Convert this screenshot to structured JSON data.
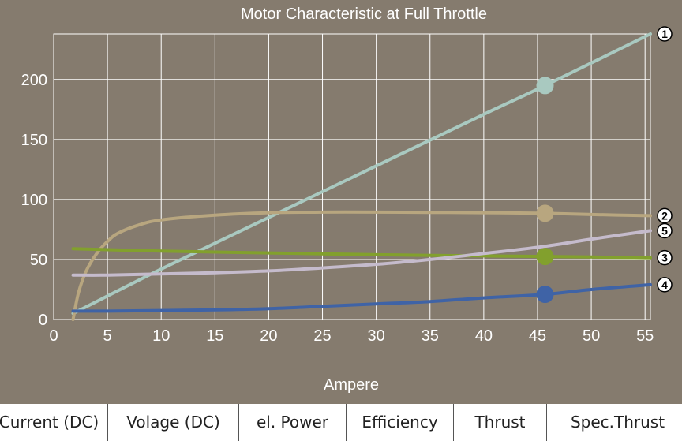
{
  "chart_data": {
    "type": "line",
    "title": "Motor Characteristic at Full Throttle",
    "xlabel": "Ampere",
    "ylabel": "",
    "xlim": [
      0,
      55.5
    ],
    "ylim": [
      0,
      238
    ],
    "xticks": [
      0,
      5,
      10,
      15,
      20,
      25,
      30,
      35,
      40,
      45,
      50,
      55
    ],
    "yticks": [
      0,
      50,
      100,
      150,
      200
    ],
    "grid": true,
    "legend": "none",
    "marker_x": 45.7,
    "series": [
      {
        "label": "1",
        "color": "#a9c9c0",
        "x": [
          1.8,
          10,
          20,
          30,
          40,
          45.7,
          55.5
        ],
        "y": [
          5,
          42,
          85,
          128,
          171,
          195,
          238
        ]
      },
      {
        "label": "2",
        "color": "#b8a67f",
        "x": [
          1.8,
          2.3,
          3,
          4,
          5,
          6,
          8,
          10,
          15,
          20,
          25,
          30,
          35,
          40,
          45.7,
          50,
          55.5
        ],
        "y": [
          0,
          22,
          40,
          55,
          65,
          72,
          79,
          83,
          87,
          89,
          89.5,
          89.5,
          89.3,
          89,
          88.5,
          87.5,
          86.5
        ]
      },
      {
        "label": "3",
        "color": "#82a02d",
        "x": [
          1.8,
          10,
          20,
          30,
          40,
          45.7,
          55.5
        ],
        "y": [
          59,
          57,
          55.5,
          54,
          53,
          52.5,
          51.5
        ]
      },
      {
        "label": "4",
        "color": "#3f63a6",
        "x": [
          1.8,
          5,
          10,
          15,
          20,
          25,
          30,
          35,
          40,
          45.7,
          50,
          55.5
        ],
        "y": [
          7,
          7,
          7.5,
          8,
          9,
          11,
          13,
          15,
          18,
          21,
          25,
          29
        ]
      },
      {
        "label": "5",
        "color": "#c5bbcc",
        "x": [
          1.8,
          5,
          10,
          15,
          20,
          25,
          30,
          35,
          40,
          45.7,
          50,
          55.5
        ],
        "y": [
          37,
          37,
          38,
          39,
          40.5,
          43,
          46,
          50,
          55,
          61,
          67,
          74
        ]
      }
    ],
    "markers": [
      {
        "series": "1",
        "x": 45.7,
        "y": 195
      },
      {
        "series": "2",
        "x": 45.7,
        "y": 88.5
      },
      {
        "series": "3",
        "x": 45.7,
        "y": 52.5
      },
      {
        "series": "4",
        "x": 45.7,
        "y": 21
      }
    ],
    "end_labels": [
      {
        "text": "1",
        "y": 238
      },
      {
        "text": "2",
        "y": 86.5
      },
      {
        "text": "5",
        "y": 74
      },
      {
        "text": "3",
        "y": 51.5
      },
      {
        "text": "4",
        "y": 29
      }
    ]
  },
  "table": {
    "headers": [
      "Current (DC)",
      "Volage (DC)",
      "el. Power",
      "Efficiency",
      "Thrust",
      "Spec.Thrust"
    ]
  }
}
